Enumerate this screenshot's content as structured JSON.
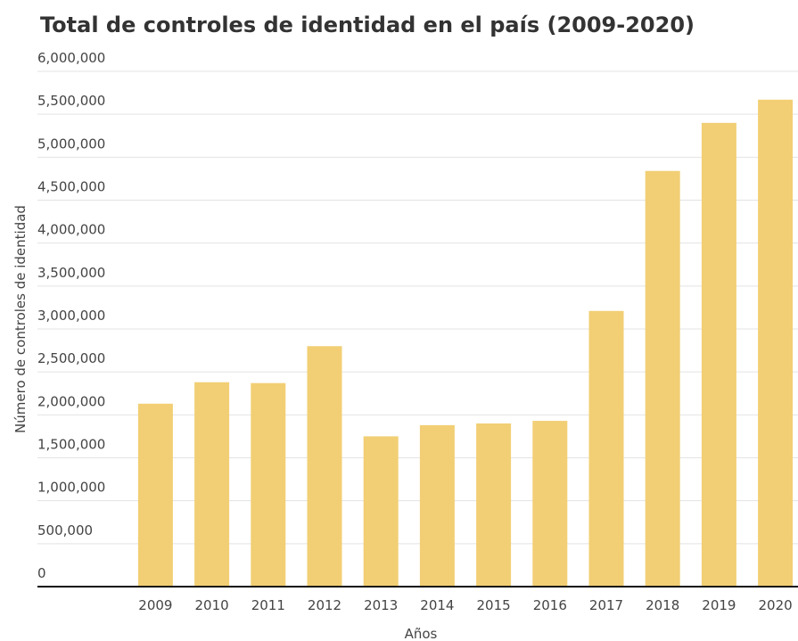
{
  "chart_data": {
    "type": "bar",
    "title": "Total de controles de identidad en el país (2009-2020)",
    "x_label": "Años",
    "y_label": "Número de controles de identidad",
    "categories": [
      "2009",
      "2010",
      "2011",
      "2012",
      "2013",
      "2014",
      "2015",
      "2016",
      "2017",
      "2018",
      "2019",
      "2020"
    ],
    "values": [
      2130000,
      2380000,
      2370000,
      2800000,
      1750000,
      1880000,
      1900000,
      1930000,
      3210000,
      4840000,
      5400000,
      5670000
    ],
    "color": "#f2cf75",
    "ylim": [
      0,
      6000000
    ],
    "yticks": [
      0,
      {
        "value": 500000,
        "label": "500,000"
      },
      {
        "value": 1000000,
        "label": "1,000,000"
      },
      {
        "value": 1500000,
        "label": "1,500,000"
      },
      {
        "value": 2000000,
        "label": "2,000,000"
      },
      {
        "value": 2500000,
        "label": "2,500,000"
      },
      {
        "value": 3000000,
        "label": "3,000,000"
      },
      {
        "value": 3500000,
        "label": "3,500,000"
      },
      {
        "value": 4000000,
        "label": "4,000,000"
      },
      {
        "value": 4500000,
        "label": "4,500,000"
      },
      {
        "value": 5000000,
        "label": "5,000,000"
      },
      {
        "value": 5500000,
        "label": "5,500,000"
      },
      {
        "value": 6000000,
        "label": "6,000,000"
      }
    ],
    "grid": true
  }
}
